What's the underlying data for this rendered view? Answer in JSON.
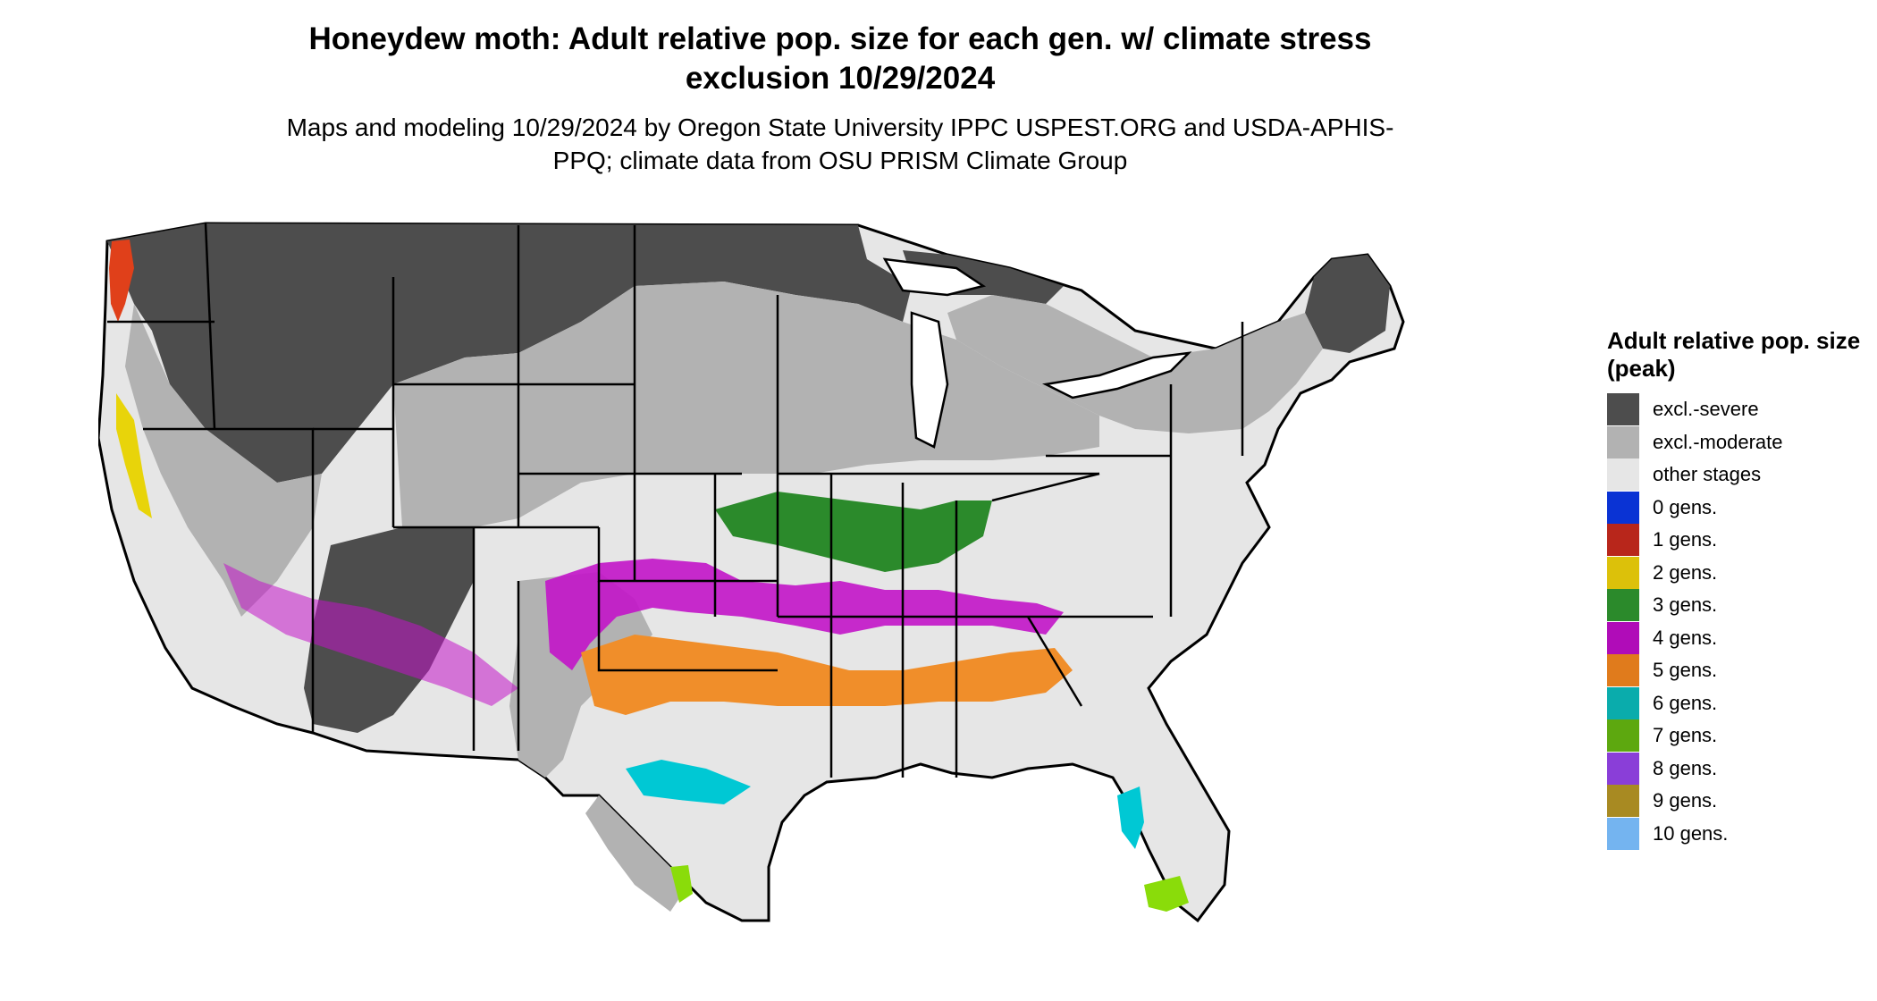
{
  "title": "Honeydew moth: Adult relative pop. size for each gen. w/ climate stress exclusion 10/29/2024",
  "subtitle": "Maps and modeling 10/29/2024 by Oregon State University IPPC USPEST.ORG and USDA-APHIS-PPQ; climate data from OSU PRISM Climate Group",
  "legend": {
    "title": "Adult relative pop. size (peak)",
    "items": [
      {
        "label": "excl.-severe",
        "color": "#4d4d4d"
      },
      {
        "label": "excl.-moderate",
        "color": "#b2b2b2"
      },
      {
        "label": "other stages",
        "color": "#e6e6e6"
      },
      {
        "label": "0 gens.",
        "color": "#0a33d4"
      },
      {
        "label": "1 gens.",
        "color": "#b8261b"
      },
      {
        "label": "2 gens.",
        "color": "#dcc10a"
      },
      {
        "label": "3 gens.",
        "color": "#2b8a2b"
      },
      {
        "label": "4 gens.",
        "color": "#b00cb8"
      },
      {
        "label": "5 gens.",
        "color": "#e07b1c"
      },
      {
        "label": "6 gens.",
        "color": "#0aacac"
      },
      {
        "label": "7 gens.",
        "color": "#5da80f"
      },
      {
        "label": "8 gens.",
        "color": "#8a3ed8"
      },
      {
        "label": "9 gens.",
        "color": "#a88a22"
      },
      {
        "label": "10 gens.",
        "color": "#74b4f0"
      }
    ]
  }
}
